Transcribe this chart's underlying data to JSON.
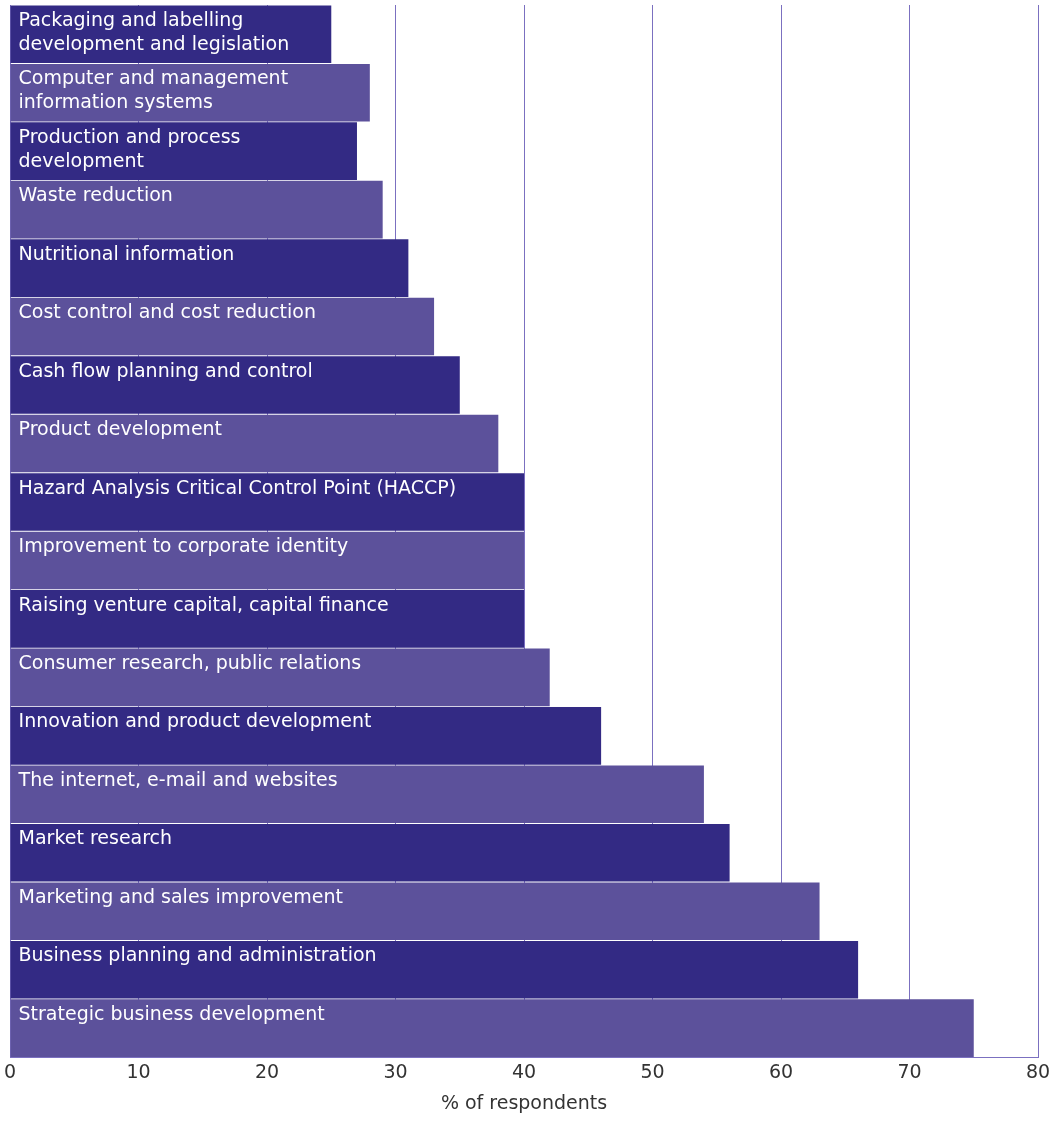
{
  "chart_data": {
    "type": "bar",
    "orientation": "horizontal",
    "xlabel": "% of respondents",
    "categories": [
      "Packaging and labelling development and legislation",
      "Computer and management information systems",
      "Production and process development",
      "Waste reduction",
      "Nutritional information",
      "Cost control and cost reduction",
      "Cash flow planning and control",
      "Product development",
      "Hazard Analysis Critical Control Point (HACCP)",
      "Improvement to corporate identity",
      "Raising venture capital, capital finance",
      "Consumer research, public relations",
      "Innovation and product development",
      "The internet, e-mail and websites",
      "Market research",
      "Marketing and sales improvement",
      "Business planning and administration",
      "Strategic business development"
    ],
    "values": [
      25,
      28,
      27,
      29,
      31,
      33,
      35,
      38,
      40,
      40,
      40,
      42,
      46,
      54,
      56,
      63,
      66,
      75
    ],
    "colors": [
      "#332a84",
      "#5c519b",
      "#332a84",
      "#5c519b",
      "#332a84",
      "#5c519b",
      "#332a84",
      "#5c519b",
      "#332a84",
      "#5c519b",
      "#332a84",
      "#5c519b",
      "#332a84",
      "#5c519b",
      "#332a84",
      "#5c519b",
      "#332a84",
      "#5c519b"
    ],
    "xlim": [
      0,
      80
    ],
    "xticks": [
      0,
      10,
      20,
      30,
      40,
      50,
      60,
      70,
      80
    ],
    "grid": "x",
    "legend": false,
    "tick_labels": "x"
  }
}
